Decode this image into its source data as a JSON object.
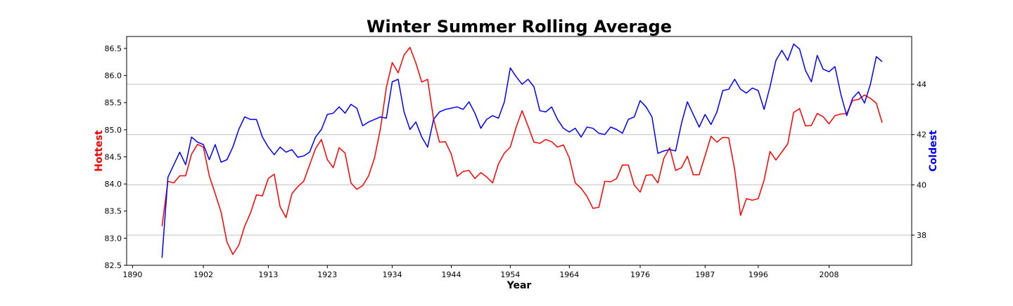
{
  "chart_data": {
    "type": "line",
    "title": "Winter Summer Rolling Average",
    "xlabel": "Year",
    "ylabel_left": "Hottest",
    "ylabel_right": "Coldest",
    "colors": {
      "left": "#ff0000",
      "right": "#0000ff"
    },
    "xlim": [
      1889,
      2022
    ],
    "ylim_left": [
      82.5,
      86.72
    ],
    "ylim_right": [
      36.8,
      45.9
    ],
    "x_ticks": [
      1890,
      1902,
      1913,
      1923,
      1934,
      1944,
      1954,
      1964,
      1976,
      1987,
      1996,
      2008
    ],
    "y_ticks_left": [
      82.5,
      83.0,
      83.5,
      84.0,
      84.5,
      85.0,
      85.5,
      86.0,
      86.5
    ],
    "y_ticks_right": [
      38,
      40,
      42,
      44
    ],
    "grid": "horizontal, right axis",
    "series": [
      {
        "name": "Hottest",
        "axis": "left",
        "color": "#ff0000",
        "x_start": 1895,
        "values": [
          83.22,
          84.05,
          84.02,
          84.15,
          84.15,
          84.55,
          84.73,
          84.68,
          84.15,
          83.82,
          83.48,
          82.93,
          82.7,
          82.87,
          83.22,
          83.47,
          83.8,
          83.78,
          84.1,
          84.18,
          83.58,
          83.38,
          83.82,
          83.95,
          84.05,
          84.35,
          84.65,
          84.82,
          84.45,
          84.3,
          84.67,
          84.57,
          84.02,
          83.9,
          83.97,
          84.15,
          84.48,
          85.02,
          85.78,
          86.24,
          86.05,
          86.38,
          86.52,
          86.23,
          85.88,
          85.93,
          85.2,
          84.77,
          84.78,
          84.55,
          84.14,
          84.23,
          84.25,
          84.1,
          84.21,
          84.13,
          84.02,
          84.37,
          84.57,
          84.68,
          85.05,
          85.35,
          85.07,
          84.77,
          84.75,
          84.82,
          84.78,
          84.68,
          84.72,
          84.48,
          84.02,
          83.92,
          83.77,
          83.55,
          83.57,
          84.05,
          84.04,
          84.1,
          84.35,
          84.35,
          83.98,
          83.85,
          84.16,
          84.17,
          84.02,
          84.47,
          84.67,
          84.25,
          84.3,
          84.51,
          84.17,
          84.17,
          84.52,
          84.88,
          84.77,
          84.86,
          84.85,
          84.27,
          83.42,
          83.73,
          83.7,
          83.73,
          84.07,
          84.6,
          84.44,
          84.59,
          84.74,
          85.32,
          85.39,
          85.07,
          85.08,
          85.3,
          85.24,
          85.11,
          85.26,
          85.29,
          85.3,
          85.54,
          85.56,
          85.64,
          85.58,
          85.49,
          85.13
        ]
      },
      {
        "name": "Coldest",
        "axis": "right",
        "color": "#0000ff",
        "x_start": 1895,
        "values": [
          37.1,
          40.3,
          40.8,
          41.3,
          40.8,
          41.9,
          41.7,
          41.6,
          41.0,
          41.6,
          40.9,
          41.0,
          41.5,
          42.2,
          42.7,
          42.6,
          42.6,
          41.9,
          41.5,
          41.2,
          41.5,
          41.3,
          41.4,
          41.1,
          41.15,
          41.3,
          41.9,
          42.2,
          42.8,
          42.85,
          43.1,
          42.85,
          43.2,
          43.05,
          42.35,
          42.5,
          42.6,
          42.7,
          42.65,
          44.1,
          44.2,
          42.9,
          42.2,
          42.5,
          41.9,
          41.5,
          42.6,
          42.9,
          43.0,
          43.05,
          43.1,
          43.0,
          43.3,
          42.85,
          42.25,
          42.6,
          42.75,
          42.65,
          43.3,
          44.65,
          44.3,
          44.0,
          44.2,
          43.9,
          42.95,
          42.9,
          43.1,
          42.6,
          42.25,
          42.1,
          42.25,
          41.9,
          42.3,
          42.25,
          42.05,
          42.0,
          42.3,
          42.2,
          42.05,
          42.6,
          42.7,
          43.35,
          43.1,
          42.7,
          41.25,
          41.35,
          41.4,
          41.35,
          42.45,
          43.3,
          42.8,
          42.3,
          42.8,
          42.4,
          42.9,
          43.75,
          43.8,
          44.2,
          43.8,
          43.65,
          43.85,
          43.75,
          43.0,
          43.9,
          44.95,
          45.35,
          44.95,
          45.6,
          45.4,
          44.55,
          44.1,
          45.15,
          44.6,
          44.5,
          44.7,
          43.6,
          42.75,
          43.45,
          43.7,
          43.25,
          44.0,
          45.1,
          44.9
        ]
      }
    ]
  }
}
